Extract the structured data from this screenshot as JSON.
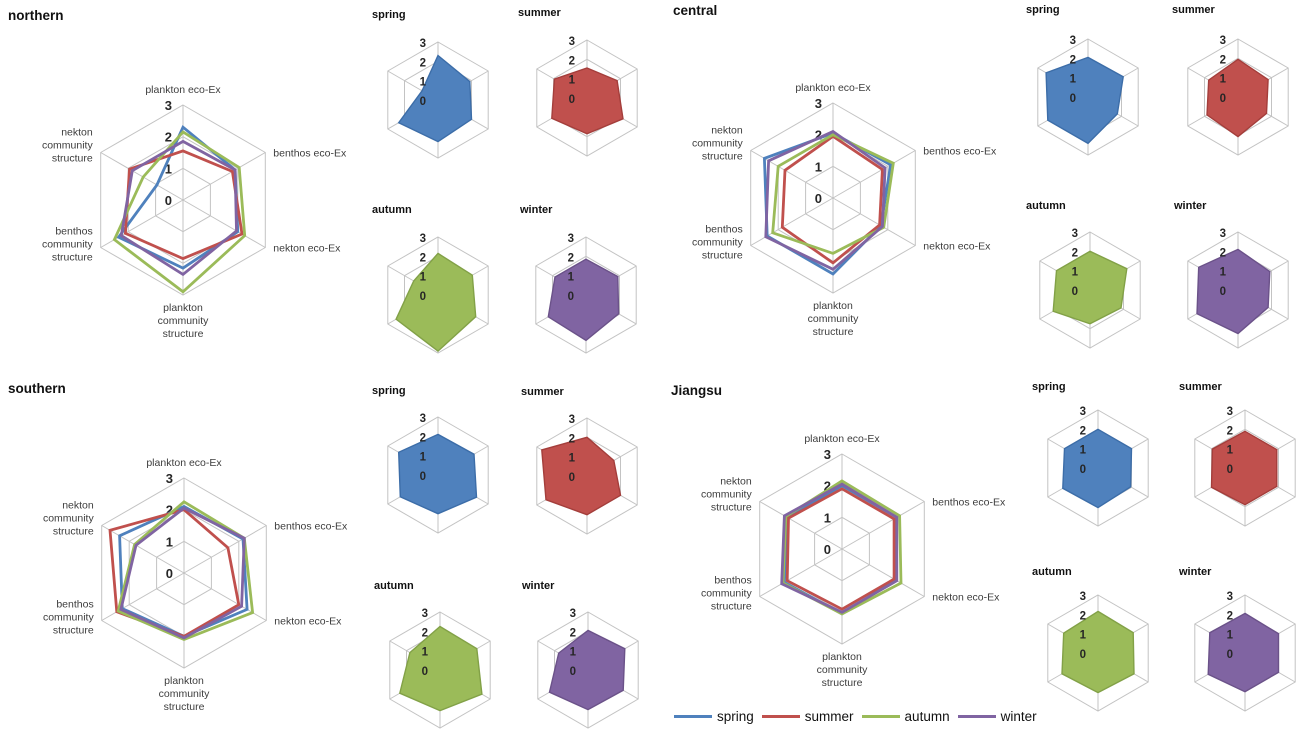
{
  "figure": {
    "background": "#ffffff",
    "seasons": [
      "spring",
      "summer",
      "autumn",
      "winter"
    ],
    "season_colors": {
      "spring": "#4F81BD",
      "summer": "#C0504D",
      "autumn": "#9BBB59",
      "winter": "#8064A2"
    },
    "grid_color": "#c3c3c3",
    "tick_labels": [
      "0",
      "1",
      "2",
      "3"
    ]
  },
  "chart_data": [
    {
      "type": "radar",
      "title": "northern",
      "rmax": 3,
      "ticks": [
        0,
        1,
        2,
        3
      ],
      "categories": [
        "plankton eco-Ex",
        "benthos eco-Ex",
        "nekton eco-Ex",
        "plankton community structure",
        "benthos community structure",
        "nekton community structure"
      ],
      "series": [
        {
          "name": "spring",
          "color": "#4F81BD",
          "values": [
            2.3,
            1.9,
            2.0,
            2.15,
            2.35,
            0.95
          ]
        },
        {
          "name": "summer",
          "color": "#C0504D",
          "values": [
            1.55,
            1.8,
            2.15,
            1.85,
            2.1,
            1.95
          ]
        },
        {
          "name": "autumn",
          "color": "#9BBB59",
          "values": [
            2.15,
            2.05,
            2.25,
            2.9,
            2.5,
            1.45
          ]
        },
        {
          "name": "winter",
          "color": "#8064A2",
          "values": [
            1.85,
            1.9,
            1.95,
            2.35,
            2.25,
            1.85
          ]
        }
      ],
      "small_multiples": [
        "spring",
        "summer",
        "autumn",
        "winter"
      ]
    },
    {
      "type": "radar",
      "title": "central",
      "rmax": 3,
      "ticks": [
        0,
        1,
        2,
        3
      ],
      "categories": [
        "plankton eco-Ex",
        "benthos eco-Ex",
        "nekton eco-Ex",
        "plankton community structure",
        "benthos community structure",
        "nekton community structure"
      ],
      "series": [
        {
          "name": "spring",
          "color": "#4F81BD",
          "values": [
            2.05,
            2.1,
            1.75,
            2.4,
            2.4,
            2.5
          ]
        },
        {
          "name": "summer",
          "color": "#C0504D",
          "values": [
            1.95,
            1.8,
            1.7,
            2.05,
            1.85,
            1.75
          ]
        },
        {
          "name": "autumn",
          "color": "#9BBB59",
          "values": [
            2.0,
            2.2,
            1.85,
            1.75,
            2.2,
            2.0
          ]
        },
        {
          "name": "winter",
          "color": "#8064A2",
          "values": [
            2.1,
            1.9,
            1.8,
            2.25,
            2.45,
            2.35
          ]
        }
      ],
      "small_multiples": [
        "spring",
        "summer",
        "autumn",
        "winter"
      ]
    },
    {
      "type": "radar",
      "title": "southern",
      "rmax": 3,
      "ticks": [
        0,
        1,
        2,
        3
      ],
      "categories": [
        "plankton eco-Ex",
        "benthos eco-Ex",
        "nekton eco-Ex",
        "plankton community structure",
        "benthos community structure",
        "nekton community structure"
      ],
      "series": [
        {
          "name": "spring",
          "color": "#4F81BD",
          "values": [
            2.1,
            2.15,
            2.3,
            2.0,
            2.25,
            2.35
          ]
        },
        {
          "name": "summer",
          "color": "#C0504D",
          "values": [
            2.0,
            1.6,
            2.0,
            2.0,
            2.45,
            2.7
          ]
        },
        {
          "name": "autumn",
          "color": "#9BBB59",
          "values": [
            2.25,
            2.2,
            2.5,
            2.1,
            2.4,
            1.8
          ]
        },
        {
          "name": "winter",
          "color": "#8064A2",
          "values": [
            2.05,
            2.2,
            2.1,
            2.05,
            2.3,
            1.75
          ]
        }
      ],
      "small_multiples": [
        "spring",
        "summer",
        "autumn",
        "winter"
      ]
    },
    {
      "type": "radar",
      "title": "Jiangsu",
      "rmax": 3,
      "ticks": [
        0,
        1,
        2,
        3
      ],
      "categories": [
        "plankton eco-Ex",
        "benthos eco-Ex",
        "nekton eco-Ex",
        "plankton community structure",
        "benthos community structure",
        "nekton community structure"
      ],
      "series": [
        {
          "name": "spring",
          "color": "#4F81BD",
          "values": [
            2.0,
            2.0,
            1.95,
            2.05,
            2.1,
            2.0
          ]
        },
        {
          "name": "summer",
          "color": "#C0504D",
          "values": [
            1.9,
            1.9,
            1.9,
            1.9,
            2.0,
            1.95
          ]
        },
        {
          "name": "autumn",
          "color": "#9BBB59",
          "values": [
            2.15,
            2.1,
            2.15,
            2.05,
            2.15,
            2.05
          ]
        },
        {
          "name": "winter",
          "color": "#8064A2",
          "values": [
            2.05,
            2.0,
            2.0,
            2.0,
            2.2,
            2.1
          ]
        }
      ],
      "small_multiples": [
        "spring",
        "summer",
        "autumn",
        "winter"
      ]
    }
  ],
  "legend": {
    "items": [
      {
        "label": "spring",
        "color": "#4F81BD"
      },
      {
        "label": "summer",
        "color": "#C0504D"
      },
      {
        "label": "autumn",
        "color": "#9BBB59"
      },
      {
        "label": "winter",
        "color": "#8064A2"
      }
    ]
  }
}
